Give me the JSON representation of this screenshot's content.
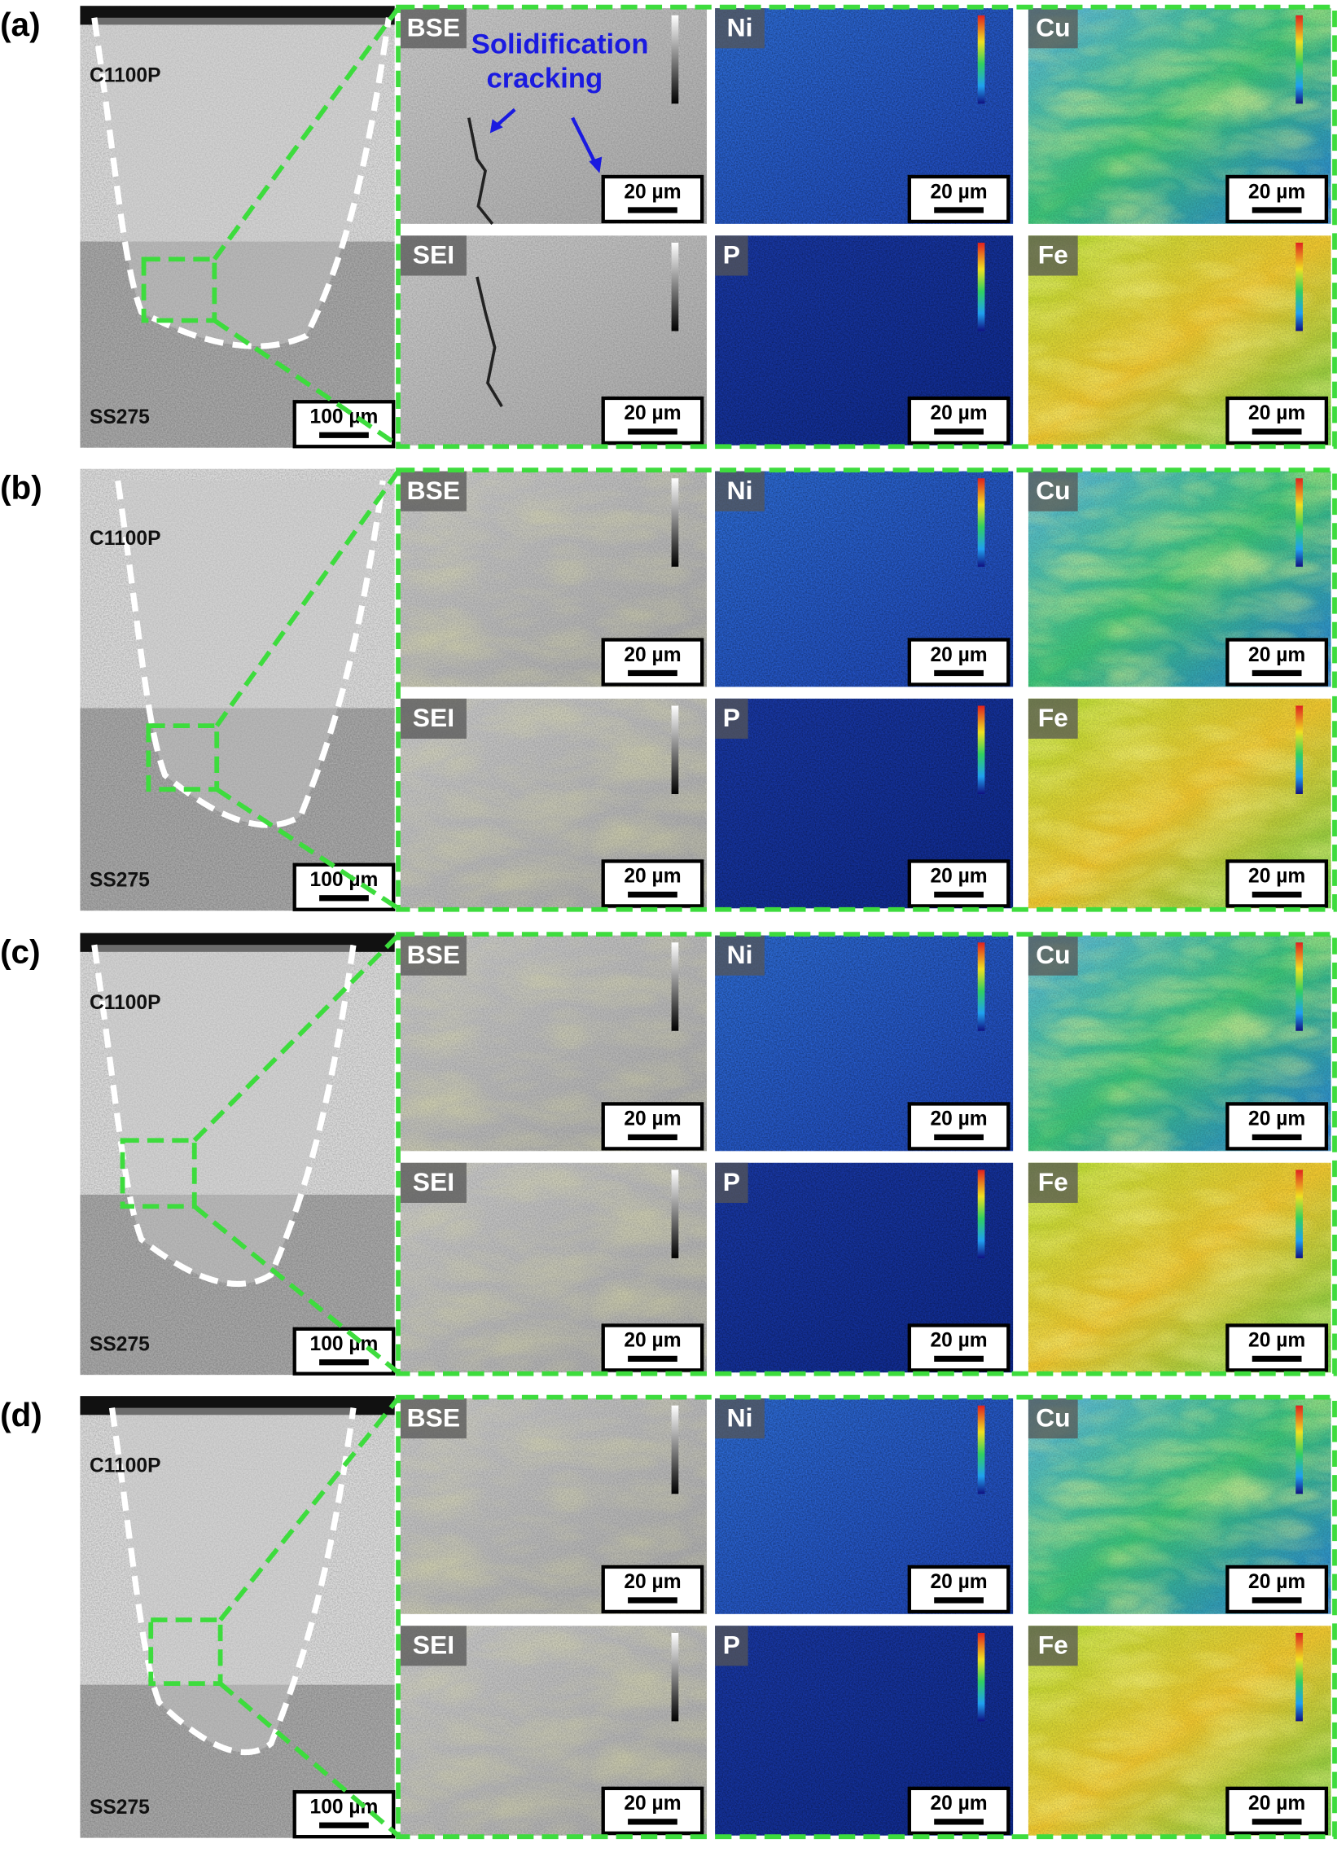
{
  "panels": [
    {
      "label": "(a)",
      "cross_section": {
        "top_material": "C1100P",
        "bottom_material": "SS275",
        "scale_bar": "100 µm"
      },
      "maps": [
        {
          "label": "BSE",
          "scale_bar": "20 µm"
        },
        {
          "label": "Ni",
          "scale_bar": "20 µm"
        },
        {
          "label": "Cu",
          "scale_bar": "20 µm"
        },
        {
          "label": "SEI",
          "scale_bar": "20 µm"
        },
        {
          "label": "P",
          "scale_bar": "20 µm"
        },
        {
          "label": "Fe",
          "scale_bar": "20 µm"
        }
      ],
      "annotation": [
        "Solidification",
        "cracking"
      ]
    },
    {
      "label": "(b)",
      "cross_section": {
        "top_material": "C1100P",
        "bottom_material": "SS275",
        "scale_bar": "100 µm"
      },
      "maps": [
        {
          "label": "BSE",
          "scale_bar": "20 µm"
        },
        {
          "label": "Ni",
          "scale_bar": "20 µm"
        },
        {
          "label": "Cu",
          "scale_bar": "20 µm"
        },
        {
          "label": "SEI",
          "scale_bar": "20 µm"
        },
        {
          "label": "P",
          "scale_bar": "20 µm"
        },
        {
          "label": "Fe",
          "scale_bar": "20 µm"
        }
      ]
    },
    {
      "label": "(c)",
      "cross_section": {
        "top_material": "C1100P",
        "bottom_material": "SS275",
        "scale_bar": "100 µm"
      },
      "maps": [
        {
          "label": "BSE",
          "scale_bar": "20 µm"
        },
        {
          "label": "Ni",
          "scale_bar": "20 µm"
        },
        {
          "label": "Cu",
          "scale_bar": "20 µm"
        },
        {
          "label": "SEI",
          "scale_bar": "20 µm"
        },
        {
          "label": "P",
          "scale_bar": "20 µm"
        },
        {
          "label": "Fe",
          "scale_bar": "20 µm"
        }
      ]
    },
    {
      "label": "(d)",
      "cross_section": {
        "top_material": "C1100P",
        "bottom_material": "SS275",
        "scale_bar": "100 µm"
      },
      "maps": [
        {
          "label": "BSE",
          "scale_bar": "20 µm"
        },
        {
          "label": "Ni",
          "scale_bar": "20 µm"
        },
        {
          "label": "Cu",
          "scale_bar": "20 µm"
        },
        {
          "label": "SEI",
          "scale_bar": "20 µm"
        },
        {
          "label": "P",
          "scale_bar": "20 µm"
        },
        {
          "label": "Fe",
          "scale_bar": "20 µm"
        }
      ]
    }
  ]
}
